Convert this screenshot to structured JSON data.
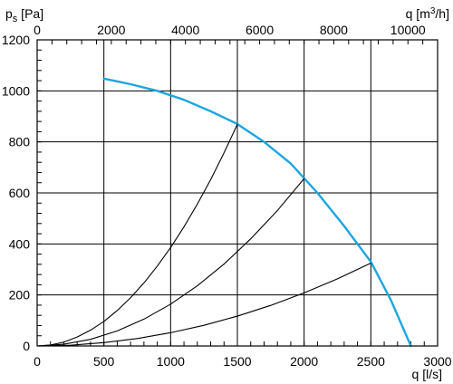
{
  "chart_data": {
    "type": "line",
    "title": "",
    "ylabel": {
      "main": "p",
      "sub": "s",
      "unit": " [Pa]"
    },
    "xlabel": "q [l/s]",
    "x2label": {
      "pre": "q [m",
      "sup": "3",
      "post": "/h]"
    },
    "xlim": [
      0,
      3000
    ],
    "ylim": [
      0,
      1200
    ],
    "x2lim": [
      0,
      10800
    ],
    "x_ticks": [
      0,
      500,
      1000,
      1500,
      2000,
      2500,
      3000
    ],
    "y_ticks": [
      0,
      200,
      400,
      600,
      800,
      1000,
      1200
    ],
    "x2_ticks": [
      0,
      2000,
      4000,
      6000,
      8000,
      10000
    ],
    "x_minor_step": 100,
    "y_minor_step": 40,
    "x2_minor_step": 400,
    "grid": true,
    "colors": {
      "fan_curve": "#1ba6e0",
      "system_curves": "#000000",
      "grid": "#000000"
    },
    "series": [
      {
        "role": "fan_curve",
        "x": [
          500,
          700,
          900,
          1100,
          1300,
          1500,
          1700,
          1900,
          2100,
          2300,
          2500,
          2650,
          2800
        ],
        "y": [
          1048,
          1026,
          1000,
          965,
          920,
          870,
          800,
          715,
          600,
          470,
          330,
          180,
          0
        ]
      },
      {
        "role": "system_curve",
        "x": [
          0,
          100,
          200,
          300,
          400,
          500,
          600,
          700,
          800,
          900,
          1000,
          1100,
          1200,
          1300,
          1400,
          1500
        ],
        "y": [
          0,
          4,
          15,
          35,
          62,
          96,
          139,
          189,
          247,
          313,
          386,
          467,
          556,
          652,
          757,
          869
        ]
      },
      {
        "role": "system_curve",
        "x": [
          0,
          200,
          400,
          600,
          800,
          1000,
          1200,
          1400,
          1600,
          1800,
          2000
        ],
        "y": [
          0,
          7,
          26,
          59,
          105,
          164,
          236,
          321,
          420,
          531,
          656
        ]
      },
      {
        "role": "system_curve",
        "x": [
          0,
          250,
          500,
          750,
          1000,
          1250,
          1500,
          1750,
          2000,
          2250,
          2500
        ],
        "y": [
          0,
          3,
          13,
          29,
          52,
          81,
          117,
          159,
          208,
          263,
          325
        ]
      }
    ]
  }
}
